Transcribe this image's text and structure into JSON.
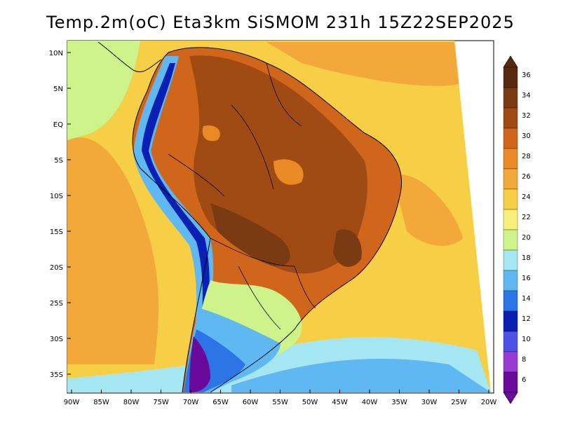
{
  "title": "Temp.2m(oC) Eta3km SiSMOM 231h 15Z22SEP2025",
  "lat_labels": [
    "10N",
    "5N",
    "EQ",
    "5S",
    "10S",
    "15S",
    "20S",
    "25S",
    "30S",
    "35S"
  ],
  "lon_labels": [
    "90W",
    "85W",
    "80W",
    "75W",
    "70W",
    "65W",
    "60W",
    "55W",
    "50W",
    "45W",
    "40W",
    "35W",
    "30W",
    "25W",
    "20W"
  ],
  "colorbar": {
    "labels": [
      "36",
      "34",
      "32",
      "30",
      "28",
      "26",
      "24",
      "22",
      "20",
      "18",
      "16",
      "14",
      "12",
      "10",
      "8",
      "6"
    ],
    "colors": [
      "#5a2a10",
      "#7a3a12",
      "#a04a14",
      "#d0661c",
      "#ea8a26",
      "#f2a93a",
      "#f6cf46",
      "#f7ef7a",
      "#cdf38a",
      "#a4e6f2",
      "#5fb8f2",
      "#2b75e6",
      "#0a20b4",
      "#4c52e6",
      "#9a3ad6",
      "#6a0a9c"
    ]
  },
  "field_colors": {
    "ocean": "#f6cf46",
    "ocean_warm": "#f2a93a",
    "land_hot": "#d0661c",
    "land_very_hot": "#a04a14",
    "andes_cool": "#5fb8f2",
    "andes_cold": "#0a20b4",
    "south_cold": "#6a0a9c",
    "south_cool": "#a4e6f2",
    "coast_cool": "#cdf38a"
  }
}
